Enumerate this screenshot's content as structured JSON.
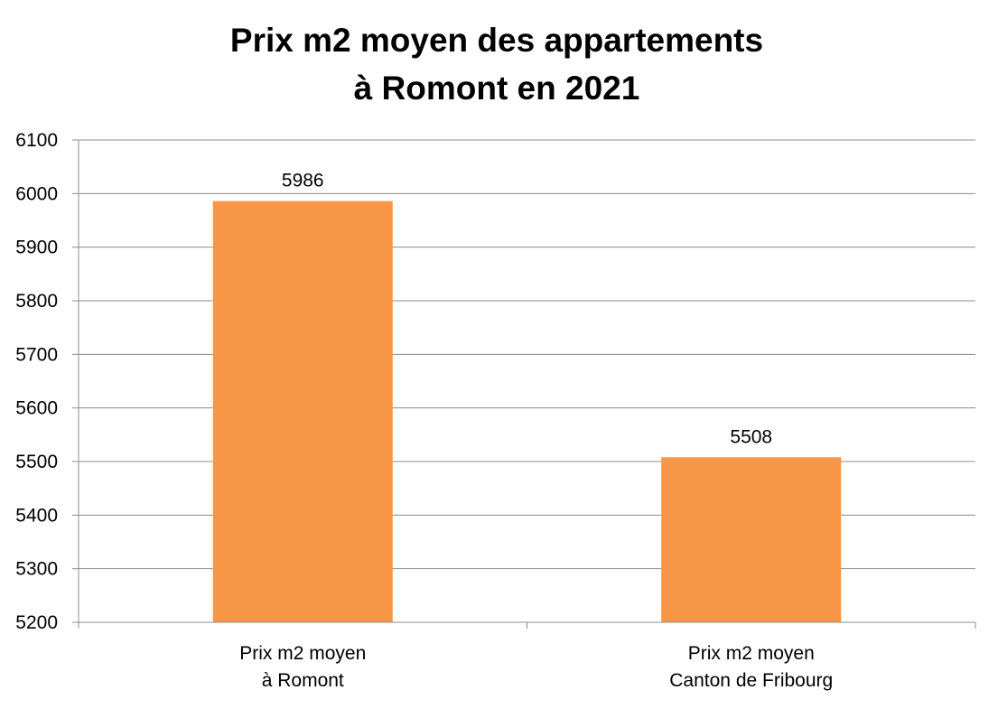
{
  "chart_data": {
    "type": "bar",
    "title": [
      "Prix m2 moyen des appartements",
      "à Romont en 2021"
    ],
    "categories": [
      [
        "Prix m2 moyen",
        "à Romont"
      ],
      [
        "Prix m2 moyen",
        "Canton de Fribourg"
      ]
    ],
    "values": [
      5986,
      5508
    ],
    "data_labels": [
      "5986",
      "5508"
    ],
    "ylim": [
      5200,
      6100
    ],
    "yticks": [
      "5200",
      "5300",
      "5400",
      "5500",
      "5600",
      "5700",
      "5800",
      "5900",
      "6000",
      "6100"
    ],
    "grid": true,
    "bar_color": "#f79646",
    "grid_color": "#8c8c8c",
    "axis_color": "#8c8c8c"
  }
}
